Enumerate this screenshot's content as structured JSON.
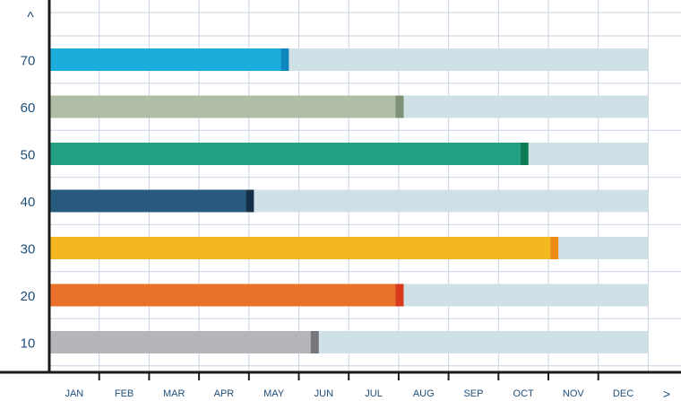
{
  "chart_data": {
    "type": "bar",
    "orientation": "horizontal",
    "title": "",
    "xlabel": "",
    "ylabel": "",
    "y_axis_arrow": "^",
    "x_axis_arrow": ">",
    "x_tick_labels": [
      "JAN",
      "FEB",
      "MAR",
      "APR",
      "MAY",
      "JUN",
      "JUL",
      "AUG",
      "SEP",
      "OCT",
      "NOV",
      "DEC"
    ],
    "xlim": [
      0,
      12
    ],
    "grid": true,
    "categories": [
      "70",
      "60",
      "50",
      "40",
      "30",
      "20",
      "10"
    ],
    "values": [
      4.8,
      7.1,
      9.6,
      4.1,
      10.2,
      7.1,
      5.4
    ],
    "track_value": 12,
    "colors": [
      "#1baddc",
      "#b0bda7",
      "#22a084",
      "#275a7c",
      "#f3b81f",
      "#ea712a",
      "#b6b5bb"
    ],
    "cap_colors": [
      "#0e86bf",
      "#7e9176",
      "#0c7a52",
      "#143049",
      "#f08c16",
      "#d83a1c",
      "#76777c"
    ],
    "track_color": "#cfe0e6"
  }
}
